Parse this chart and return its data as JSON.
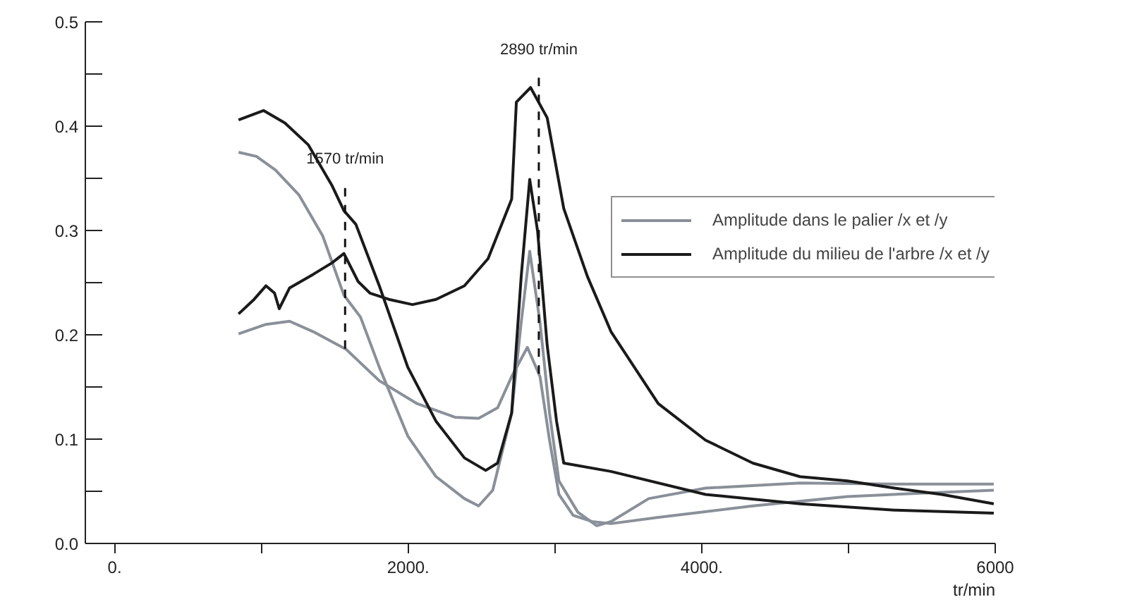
{
  "chart_data": {
    "type": "line",
    "xlabel": "tr/min",
    "xlim": [
      -200,
      6000
    ],
    "ylim": [
      0,
      0.5
    ],
    "xticks": [
      {
        "value": 0,
        "label": "0."
      },
      {
        "value": 1000,
        "label": null
      },
      {
        "value": 2000,
        "label": "2000."
      },
      {
        "value": 3000,
        "label": null
      },
      {
        "value": 4000,
        "label": "4000."
      },
      {
        "value": 5000,
        "label": null
      },
      6000
    ],
    "yticks": [
      {
        "value": 0,
        "label": "0.0"
      },
      {
        "value": 0.05,
        "label": null
      },
      {
        "value": 0.1,
        "label": "0.1"
      },
      {
        "value": 0.15,
        "label": null
      },
      {
        "value": 0.2,
        "label": "0.2"
      },
      {
        "value": 0.25,
        "label": null
      },
      {
        "value": 0.3,
        "label": "0.3"
      },
      {
        "value": 0.35,
        "label": null
      },
      {
        "value": 0.4,
        "label": "0.4"
      },
      {
        "value": 0.45,
        "label": null
      },
      {
        "value": 0.5,
        "label": "0.5"
      }
    ],
    "grid": false,
    "legend": "top right",
    "marker": "none",
    "line_style": "solid",
    "ref_lines": [
      {
        "axis": "x",
        "value": 1570,
        "label": "1570 tr/min",
        "line_style": "dashed"
      },
      {
        "axis": "x",
        "value": 2890,
        "label": "2890 tr/min",
        "line_style": "dashed"
      }
    ],
    "series": [
      {
        "name": "Amplitude dans le palier /x et /y",
        "color": "#8a9099",
        "x": [
          844,
          966,
          1095,
          1256,
          1417,
          1562,
          1675,
          1803,
          1997,
          2190,
          2383,
          2480,
          2576,
          2705,
          2770,
          2828,
          2898,
          2963,
          3027,
          3156,
          3285,
          3382,
          3639,
          4026,
          4670,
          5314,
          5990
        ],
        "values": [
          0.375,
          0.371,
          0.358,
          0.334,
          0.295,
          0.238,
          0.217,
          0.169,
          0.103,
          0.064,
          0.043,
          0.036,
          0.051,
          0.125,
          0.212,
          0.28,
          0.212,
          0.125,
          0.06,
          0.03,
          0.017,
          0.021,
          0.043,
          0.053,
          0.058,
          0.057,
          0.057
        ]
      },
      {
        "color": "#8a9099",
        "x": [
          844,
          1031,
          1192,
          1353,
          1578,
          1803,
          2061,
          2319,
          2480,
          2609,
          2705,
          2812,
          2898,
          2963,
          3027,
          3124,
          3253,
          3382,
          3704,
          4348,
          4992,
          5636,
          5990
        ],
        "values": [
          0.201,
          0.21,
          0.213,
          0.203,
          0.186,
          0.156,
          0.134,
          0.121,
          0.12,
          0.13,
          0.16,
          0.188,
          0.16,
          0.099,
          0.047,
          0.027,
          0.021,
          0.019,
          0.025,
          0.036,
          0.045,
          0.049,
          0.051
        ]
      },
      {
        "name": "Amplitude du milieu de l'arbre /x et /y",
        "color": "#1a1a1a",
        "x": [
          844,
          1014,
          1160,
          1320,
          1481,
          1562,
          1643,
          1803,
          1997,
          2190,
          2383,
          2528,
          2609,
          2705,
          2770,
          2828,
          2882,
          2947,
          3011,
          3060,
          3382,
          4026,
          4670,
          5314,
          5990
        ],
        "values": [
          0.406,
          0.415,
          0.403,
          0.382,
          0.343,
          0.319,
          0.306,
          0.247,
          0.169,
          0.117,
          0.082,
          0.07,
          0.077,
          0.125,
          0.256,
          0.349,
          0.299,
          0.19,
          0.117,
          0.077,
          0.069,
          0.047,
          0.038,
          0.032,
          0.029
        ]
      },
      {
        "color": "#1a1a1a",
        "x": [
          844,
          950,
          1031,
          1089,
          1121,
          1192,
          1353,
          1481,
          1562,
          1659,
          1739,
          1868,
          2029,
          2190,
          2383,
          2544,
          2705,
          2737,
          2834,
          2947,
          3060,
          3221,
          3382,
          3704,
          4026,
          4348,
          4670,
          4992,
          5314,
          5636,
          5990
        ],
        "values": [
          0.22,
          0.234,
          0.247,
          0.24,
          0.225,
          0.245,
          0.258,
          0.269,
          0.278,
          0.251,
          0.24,
          0.234,
          0.229,
          0.234,
          0.247,
          0.273,
          0.33,
          0.423,
          0.437,
          0.408,
          0.321,
          0.256,
          0.203,
          0.134,
          0.099,
          0.077,
          0.064,
          0.06,
          0.053,
          0.047,
          0.038
        ]
      }
    ]
  }
}
